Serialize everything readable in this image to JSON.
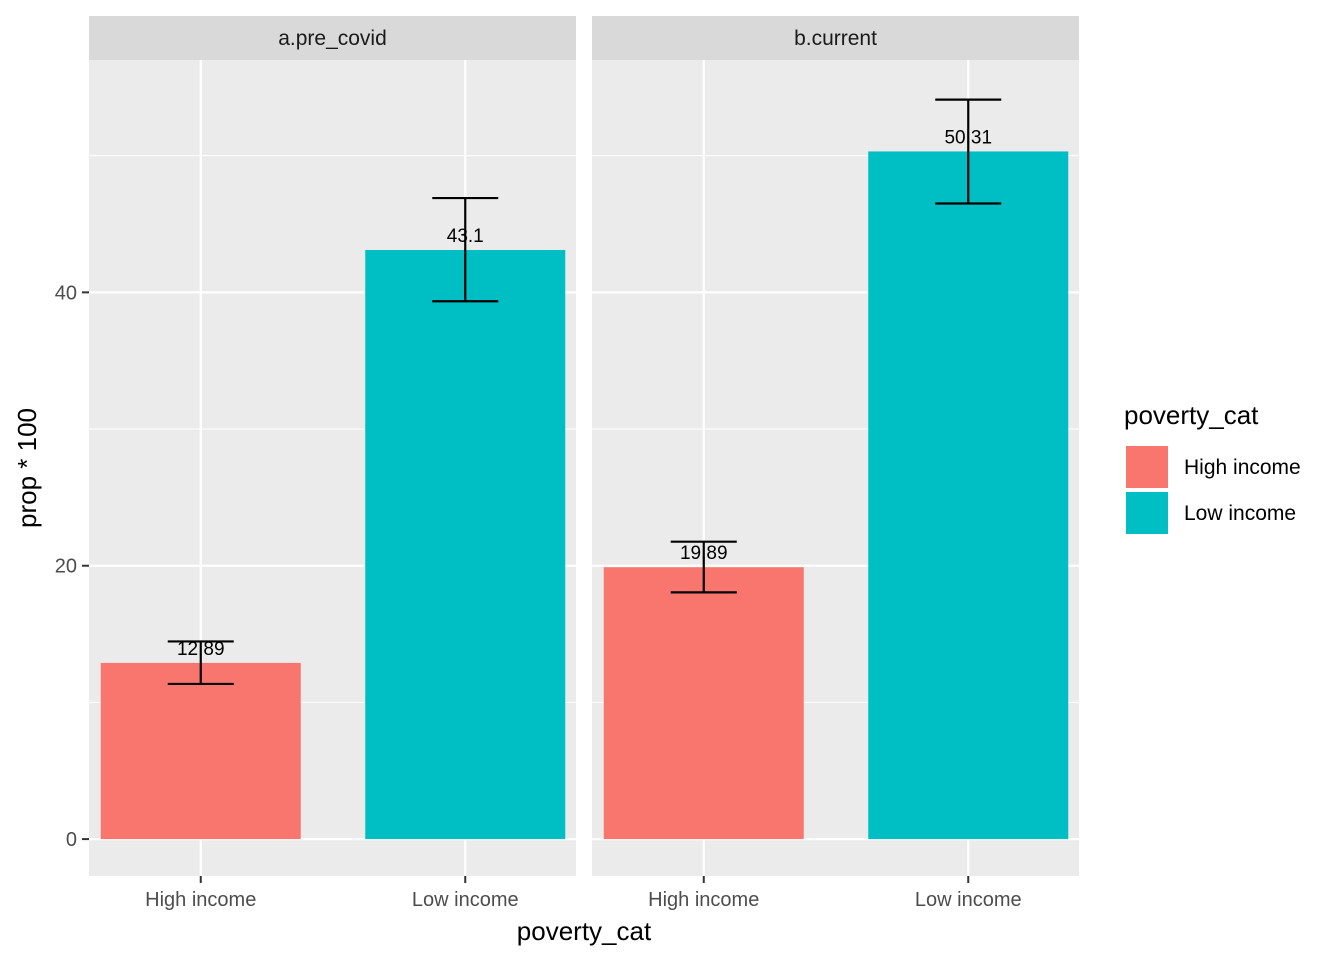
{
  "chart_data": {
    "type": "bar",
    "facets": [
      "a.pre_covid",
      "b.current"
    ],
    "categories": [
      "High income",
      "Low income"
    ],
    "colors": {
      "High income": "#F8766D",
      "Low income": "#00BFC4",
      "panel": "#EBEBEB",
      "strip": "#D9D9D9",
      "grid": "#FFFFFF"
    },
    "panels": [
      {
        "facet": "a.pre_covid",
        "bars": [
          {
            "category": "High income",
            "value": 12.89,
            "label": "12.89",
            "ci": [
              11.35,
              14.46
            ]
          },
          {
            "category": "Low income",
            "value": 43.1,
            "label": "43.1",
            "ci": [
              39.35,
              46.9
            ]
          }
        ]
      },
      {
        "facet": "b.current",
        "bars": [
          {
            "category": "High income",
            "value": 19.89,
            "label": "19.89",
            "ci": [
              18.05,
              21.76
            ]
          },
          {
            "category": "Low income",
            "value": 50.31,
            "label": "50.31",
            "ci": [
              46.5,
              54.1
            ]
          }
        ]
      }
    ],
    "xlabel": "poverty_cat",
    "ylabel": "prop * 100",
    "ylim": [
      -2.7,
      57.0
    ],
    "yticks": [
      0,
      20,
      40
    ],
    "grid": true,
    "legend": {
      "title": "poverty_cat",
      "position": "right",
      "entries": [
        "High income",
        "Low income"
      ]
    }
  }
}
